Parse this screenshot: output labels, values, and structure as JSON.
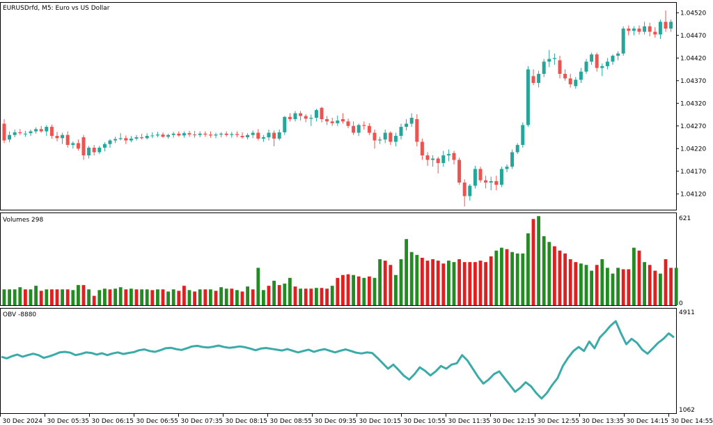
{
  "chart_data": [
    {
      "type": "candlestick",
      "title": "EURUSDrfd, M5:  Euro vs US Dollar",
      "y_ticks": [
        "1.04520",
        "1.04470",
        "1.04420",
        "1.04370",
        "1.04320",
        "1.04270",
        "1.04220",
        "1.04170",
        "1.04120"
      ],
      "ylim": [
        1.04085,
        1.04542
      ],
      "colors": {
        "up": "#26a69a",
        "down": "#ef5350"
      },
      "candles": [
        [
          1.04275,
          1.04285,
          1.04232,
          1.04238
        ],
        [
          1.0424,
          1.04258,
          1.04234,
          1.0425
        ],
        [
          1.0425,
          1.04262,
          1.04245,
          1.04256
        ],
        [
          1.04256,
          1.04263,
          1.0425,
          1.04254
        ],
        [
          1.04252,
          1.04259,
          1.04246,
          1.04253
        ],
        [
          1.04254,
          1.04262,
          1.04248,
          1.04258
        ],
        [
          1.04258,
          1.04267,
          1.04253,
          1.04263
        ],
        [
          1.04263,
          1.0427,
          1.04255,
          1.04258
        ],
        [
          1.04258,
          1.04272,
          1.04248,
          1.04268
        ],
        [
          1.04268,
          1.04273,
          1.04242,
          1.04248
        ],
        [
          1.04248,
          1.04257,
          1.04236,
          1.04243
        ],
        [
          1.04243,
          1.04255,
          1.0423,
          1.0425
        ],
        [
          1.0425,
          1.04258,
          1.04222,
          1.04228
        ],
        [
          1.04228,
          1.04236,
          1.0422,
          1.04232
        ],
        [
          1.04232,
          1.0424,
          1.04216,
          1.0422
        ],
        [
          1.04245,
          1.0425,
          1.04195,
          1.04205
        ],
        [
          1.04205,
          1.04226,
          1.04198,
          1.04222
        ],
        [
          1.04222,
          1.04228,
          1.04205,
          1.04212
        ],
        [
          1.04212,
          1.04226,
          1.04208,
          1.04222
        ],
        [
          1.04222,
          1.04234,
          1.04214,
          1.0423
        ],
        [
          1.0423,
          1.04241,
          1.04222,
          1.04238
        ],
        [
          1.04238,
          1.04246,
          1.04232,
          1.04241
        ],
        [
          1.04241,
          1.04254,
          1.04238,
          1.04243
        ],
        [
          1.04243,
          1.04249,
          1.0423,
          1.04238
        ],
        [
          1.04238,
          1.04248,
          1.04234,
          1.04242
        ],
        [
          1.04242,
          1.0425,
          1.04238,
          1.04245
        ],
        [
          1.04245,
          1.04253,
          1.0424,
          1.04243
        ],
        [
          1.04243,
          1.04254,
          1.0424,
          1.04248
        ],
        [
          1.04248,
          1.04256,
          1.04243,
          1.04249
        ],
        [
          1.04249,
          1.04257,
          1.04245,
          1.04251
        ],
        [
          1.04251,
          1.04256,
          1.04244,
          1.04246
        ],
        [
          1.04246,
          1.04253,
          1.04242,
          1.0425
        ],
        [
          1.0425,
          1.04257,
          1.04244,
          1.04253
        ],
        [
          1.04253,
          1.04258,
          1.04246,
          1.04249
        ],
        [
          1.04249,
          1.04258,
          1.04244,
          1.04254
        ],
        [
          1.04254,
          1.04259,
          1.04246,
          1.04251
        ],
        [
          1.04251,
          1.04259,
          1.04244,
          1.0425
        ],
        [
          1.0425,
          1.04258,
          1.04245,
          1.04253
        ],
        [
          1.04253,
          1.04258,
          1.04246,
          1.04251
        ],
        [
          1.04251,
          1.04258,
          1.04244,
          1.04249
        ],
        [
          1.04249,
          1.04255,
          1.04243,
          1.04251
        ],
        [
          1.04251,
          1.04256,
          1.04245,
          1.04253
        ],
        [
          1.04253,
          1.04258,
          1.04246,
          1.0425
        ],
        [
          1.0425,
          1.04257,
          1.04244,
          1.04252
        ],
        [
          1.04252,
          1.04258,
          1.04245,
          1.0425
        ],
        [
          1.04248,
          1.04256,
          1.04242,
          1.04245
        ],
        [
          1.04245,
          1.04254,
          1.0424,
          1.0425
        ],
        [
          1.0425,
          1.0426,
          1.04243,
          1.04255
        ],
        [
          1.04255,
          1.04263,
          1.04238,
          1.04242
        ],
        [
          1.04242,
          1.0425,
          1.04235,
          1.04245
        ],
        [
          1.04245,
          1.04262,
          1.04238,
          1.04255
        ],
        [
          1.04255,
          1.0426,
          1.04225,
          1.04242
        ],
        [
          1.04242,
          1.04262,
          1.04238,
          1.04256
        ],
        [
          1.04256,
          1.04292,
          1.0425,
          1.0429
        ],
        [
          1.0429,
          1.04298,
          1.0428,
          1.04285
        ],
        [
          1.04285,
          1.04303,
          1.0428,
          1.04298
        ],
        [
          1.04298,
          1.04303,
          1.04282,
          1.04292
        ],
        [
          1.04292,
          1.04296,
          1.04278,
          1.04286
        ],
        [
          1.04286,
          1.04295,
          1.0427,
          1.04288
        ],
        [
          1.04288,
          1.04308,
          1.0428,
          1.04305
        ],
        [
          1.0431,
          1.04312,
          1.04278,
          1.04285
        ],
        [
          1.04285,
          1.04292,
          1.04272,
          1.0428
        ],
        [
          1.0428,
          1.04288,
          1.0427,
          1.04276
        ],
        [
          1.04276,
          1.04293,
          1.0427,
          1.04282
        ],
        [
          1.04285,
          1.04298,
          1.04275,
          1.0428
        ],
        [
          1.0428,
          1.04286,
          1.04265,
          1.0427
        ],
        [
          1.0427,
          1.0428,
          1.0425,
          1.04255
        ],
        [
          1.04255,
          1.04275,
          1.04248,
          1.04272
        ],
        [
          1.04272,
          1.0428,
          1.04262,
          1.0427
        ],
        [
          1.0427,
          1.04276,
          1.0425,
          1.04255
        ],
        [
          1.04255,
          1.04262,
          1.0422,
          1.04238
        ],
        [
          1.04238,
          1.04246,
          1.0423,
          1.0424
        ],
        [
          1.0424,
          1.04262,
          1.04232,
          1.04255
        ],
        [
          1.04255,
          1.04258,
          1.04228,
          1.04235
        ],
        [
          1.04235,
          1.04255,
          1.04225,
          1.04248
        ],
        [
          1.04248,
          1.04275,
          1.0424,
          1.04268
        ],
        [
          1.04268,
          1.04285,
          1.0426,
          1.04275
        ],
        [
          1.04275,
          1.04298,
          1.04268,
          1.04288
        ],
        [
          1.04285,
          1.04296,
          1.04225,
          1.04235
        ],
        [
          1.04235,
          1.04242,
          1.04195,
          1.04205
        ],
        [
          1.04205,
          1.04212,
          1.04182,
          1.04195
        ],
        [
          1.04195,
          1.04205,
          1.0418,
          1.04198
        ],
        [
          1.04198,
          1.04202,
          1.04165,
          1.04188
        ],
        [
          1.04188,
          1.04215,
          1.0418,
          1.04205
        ],
        [
          1.04205,
          1.04218,
          1.04192,
          1.04208
        ],
        [
          1.0421,
          1.04215,
          1.04185,
          1.04195
        ],
        [
          1.04195,
          1.042,
          1.0414,
          1.04145
        ],
        [
          1.04145,
          1.04152,
          1.04092,
          1.04115
        ],
        [
          1.04115,
          1.04142,
          1.04105,
          1.04138
        ],
        [
          1.04138,
          1.04182,
          1.04132,
          1.04175
        ],
        [
          1.04175,
          1.0418,
          1.04145,
          1.0415
        ],
        [
          1.0415,
          1.0416,
          1.04132,
          1.04145
        ],
        [
          1.04145,
          1.04158,
          1.04128,
          1.04148
        ],
        [
          1.04148,
          1.0416,
          1.04128,
          1.0414
        ],
        [
          1.0414,
          1.0418,
          1.04135,
          1.04175
        ],
        [
          1.04175,
          1.04185,
          1.04168,
          1.0418
        ],
        [
          1.0418,
          1.04218,
          1.04175,
          1.04212
        ],
        [
          1.04212,
          1.04232,
          1.04208,
          1.04228
        ],
        [
          1.04228,
          1.04278,
          1.04222,
          1.04272
        ],
        [
          1.04272,
          1.04402,
          1.04268,
          1.04395
        ],
        [
          1.0438,
          1.04395,
          1.0436,
          1.04365
        ],
        [
          1.04365,
          1.04392,
          1.04355,
          1.04385
        ],
        [
          1.04385,
          1.04418,
          1.04378,
          1.04412
        ],
        [
          1.04412,
          1.04438,
          1.044,
          1.04418
        ],
        [
          1.04418,
          1.0443,
          1.04405,
          1.0442
        ],
        [
          1.04415,
          1.04425,
          1.04375,
          1.04385
        ],
        [
          1.04385,
          1.04395,
          1.0437,
          1.04375
        ],
        [
          1.04375,
          1.04385,
          1.04355,
          1.04362
        ],
        [
          1.04358,
          1.04378,
          1.04352,
          1.04372
        ],
        [
          1.04372,
          1.04398,
          1.04365,
          1.0439
        ],
        [
          1.0439,
          1.04418,
          1.04385,
          1.04412
        ],
        [
          1.04412,
          1.04432,
          1.04405,
          1.04428
        ],
        [
          1.04428,
          1.04432,
          1.0439,
          1.04398
        ],
        [
          1.04398,
          1.04408,
          1.0438,
          1.04402
        ],
        [
          1.04402,
          1.0442,
          1.04395,
          1.04412
        ],
        [
          1.04412,
          1.04428,
          1.04405,
          1.04425
        ],
        [
          1.04425,
          1.04435,
          1.04415,
          1.0443
        ],
        [
          1.0443,
          1.0449,
          1.04425,
          1.04485
        ],
        [
          1.04485,
          1.04492,
          1.0447,
          1.0448
        ],
        [
          1.0448,
          1.0449,
          1.0447,
          1.04485
        ],
        [
          1.04485,
          1.04492,
          1.04472,
          1.04478
        ],
        [
          1.04478,
          1.045,
          1.04472,
          1.0449
        ],
        [
          1.0449,
          1.04498,
          1.04468,
          1.04478
        ],
        [
          1.04478,
          1.04488,
          1.04465,
          1.04472
        ],
        [
          1.04472,
          1.04505,
          1.04462,
          1.045
        ],
        [
          1.045,
          1.04525,
          1.04478,
          1.04485
        ],
        [
          1.04485,
          1.04505,
          1.04478,
          1.045
        ]
      ]
    },
    {
      "type": "bar",
      "title": "Volumes 298",
      "y_ticks": [
        "621",
        "0"
      ],
      "ylim": [
        0,
        621
      ],
      "colors": {
        "up": "#228b22",
        "down": "#e02020"
      },
      "values": [
        110,
        110,
        110,
        125,
        110,
        110,
        135,
        100,
        110,
        110,
        110,
        110,
        110,
        105,
        140,
        140,
        110,
        65,
        105,
        115,
        110,
        115,
        125,
        110,
        115,
        110,
        110,
        110,
        105,
        110,
        110,
        95,
        110,
        100,
        135,
        105,
        95,
        110,
        110,
        110,
        100,
        125,
        115,
        115,
        105,
        95,
        130,
        110,
        260,
        105,
        135,
        170,
        140,
        150,
        190,
        130,
        115,
        115,
        115,
        120,
        120,
        115,
        135,
        190,
        210,
        215,
        210,
        200,
        190,
        200,
        190,
        320,
        310,
        280,
        210,
        320,
        460,
        370,
        350,
        330,
        310,
        320,
        310,
        290,
        310,
        300,
        320,
        300,
        300,
        300,
        310,
        300,
        340,
        380,
        400,
        390,
        370,
        360,
        360,
        500,
        600,
        620,
        480,
        440,
        410,
        380,
        360,
        320,
        300,
        290,
        280,
        240,
        280,
        320,
        260,
        220,
        260,
        250,
        250,
        400,
        380,
        300,
        280,
        240,
        220,
        320,
        260,
        260
      ],
      "up": [
        1,
        1,
        1,
        1,
        0,
        1,
        1,
        0,
        1,
        0,
        0,
        1,
        0,
        1,
        1,
        0,
        1,
        0,
        1,
        1,
        0,
        1,
        1,
        0,
        1,
        0,
        1,
        1,
        0,
        1,
        0,
        1,
        1,
        0,
        0,
        1,
        0,
        1,
        0,
        1,
        0,
        1,
        1,
        0,
        1,
        0,
        1,
        0,
        1,
        1,
        0,
        1,
        0,
        1,
        1,
        0,
        1,
        0,
        0,
        1,
        0,
        0,
        1,
        0,
        0,
        0,
        1,
        0,
        1,
        0,
        1,
        1,
        0,
        0,
        1,
        1,
        1,
        1,
        1,
        0,
        0,
        0,
        0,
        0,
        1,
        1,
        0,
        0,
        0,
        0,
        0,
        0,
        0,
        1,
        1,
        0,
        1,
        1,
        1,
        1,
        0,
        1,
        1,
        1,
        0,
        0,
        0,
        0,
        0,
        1,
        1,
        1,
        0,
        1,
        1,
        1,
        1,
        0,
        0,
        1,
        0,
        1,
        0,
        0,
        1,
        0,
        0,
        1
      ]
    },
    {
      "type": "line",
      "title": "OBV -8880",
      "y_ticks": [
        "4911",
        "1062"
      ],
      "ylim": [
        1062,
        4911
      ],
      "color": "#3aaba8",
      "values": [
        3140,
        3080,
        3160,
        3220,
        3140,
        3200,
        3250,
        3200,
        3100,
        3150,
        3220,
        3300,
        3320,
        3290,
        3200,
        3240,
        3300,
        3280,
        3220,
        3270,
        3200,
        3260,
        3300,
        3240,
        3280,
        3310,
        3380,
        3410,
        3350,
        3320,
        3380,
        3450,
        3470,
        3420,
        3390,
        3450,
        3520,
        3540,
        3500,
        3480,
        3510,
        3550,
        3500,
        3470,
        3490,
        3520,
        3490,
        3440,
        3380,
        3440,
        3460,
        3430,
        3400,
        3370,
        3420,
        3360,
        3300,
        3350,
        3400,
        3320,
        3380,
        3420,
        3360,
        3300,
        3360,
        3410,
        3350,
        3290,
        3260,
        3300,
        3280,
        3100,
        2900,
        2700,
        2850,
        2650,
        2440,
        2300,
        2500,
        2750,
        2620,
        2450,
        2600,
        2800,
        2700,
        2850,
        2900,
        3200,
        3000,
        2700,
        2400,
        2150,
        2300,
        2500,
        2600,
        2350,
        2100,
        1850,
        2000,
        2200,
        2050,
        1800,
        1600,
        1800,
        2100,
        2350,
        2800,
        3100,
        3350,
        3500,
        3350,
        3700,
        3450,
        3850,
        4050,
        4280,
        4450,
        4000,
        3600,
        3800,
        3650,
        3400,
        3250,
        3450,
        3650,
        3800,
        4000,
        3850
      ]
    }
  ],
  "x_labels": [
    "30 Dec 2024",
    "30 Dec 05:35",
    "30 Dec 06:15",
    "30 Dec 06:55",
    "30 Dec 07:35",
    "30 Dec 08:15",
    "30 Dec 08:55",
    "30 Dec 09:35",
    "30 Dec 10:15",
    "30 Dec 10:55",
    "30 Dec 11:35",
    "30 Dec 12:15",
    "30 Dec 12:55",
    "30 Dec 13:35",
    "30 Dec 14:15",
    "30 Dec 14:55"
  ]
}
